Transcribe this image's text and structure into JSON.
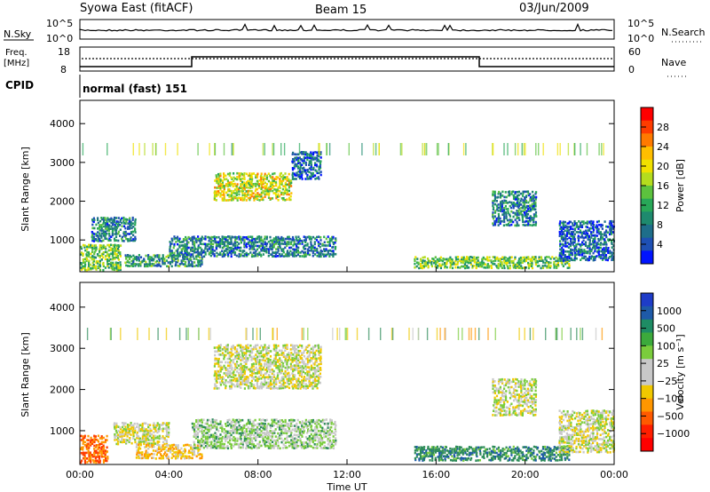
{
  "header": {
    "title": "Syowa East (fitACF)",
    "beam": "Beam 15",
    "date": "03/Jun/2009"
  },
  "nsky_panel": {
    "label": "N.Sky",
    "ticks": [
      "10^5",
      "10^0"
    ],
    "right_label": "N.Search",
    "right_ticks": [
      "10^5",
      "10^0"
    ]
  },
  "freq_panel": {
    "label_line1": "Freq.",
    "label_line2": "[MHz]",
    "ticks": [
      "18",
      "8"
    ],
    "right_label": "Nave",
    "right_ticks": [
      "60",
      "0"
    ]
  },
  "cpid": {
    "label": "CPID",
    "value": "normal (fast) 151"
  },
  "power_colorbar": {
    "label": "Power [dB]",
    "ticks": [
      "28",
      "24",
      "20",
      "16",
      "12",
      "8",
      "4"
    ],
    "colors": [
      "#ff0000",
      "#ff3c00",
      "#ff7a00",
      "#ffbe00",
      "#f0e000",
      "#b4dc1e",
      "#5cc23e",
      "#28a858",
      "#1e8a6e",
      "#1e6e8a",
      "#1e50b4",
      "#0014ff"
    ]
  },
  "velocity_colorbar": {
    "label": "Velocity [m s⁻¹]",
    "ticks": [
      "1000",
      "500",
      "100",
      "25",
      "−25",
      "−100",
      "−500",
      "−1000"
    ],
    "colors": [
      "#1e3cc8",
      "#1e5aa8",
      "#1e8c64",
      "#3caa3c",
      "#7acc3c",
      "#c8c8c8",
      "#c8c8c8",
      "#f0c800",
      "#ff9600",
      "#ff5a00",
      "#ff1e00",
      "#ff0000"
    ]
  },
  "chart_data": [
    {
      "type": "heatmap",
      "panel": "power",
      "ylabel": "Slant Range [km]",
      "yticks": [
        "1000",
        "2000",
        "3000",
        "4000"
      ],
      "ylim": [
        180,
        4600
      ],
      "x_ticks": [
        "00:00",
        "04:00",
        "08:00",
        "12:00",
        "16:00",
        "20:00",
        "00:00"
      ],
      "xlim_hours": [
        0,
        24
      ],
      "regions": [
        {
          "t0": 0.0,
          "t1": 1.8,
          "r0": 250,
          "r1": 900,
          "dB": 14
        },
        {
          "t0": 0.5,
          "t1": 2.5,
          "r0": 1000,
          "r1": 1600,
          "dB": 8
        },
        {
          "t0": 2.0,
          "t1": 5.5,
          "r0": 350,
          "r1": 650,
          "dB": 10
        },
        {
          "t0": 4.0,
          "t1": 11.5,
          "r0": 600,
          "r1": 1100,
          "dB": 8
        },
        {
          "t0": 6.0,
          "t1": 9.5,
          "r0": 2050,
          "r1": 2750,
          "dB": 18
        },
        {
          "t0": 9.5,
          "t1": 10.8,
          "r0": 2600,
          "r1": 3300,
          "dB": 6
        },
        {
          "t0": 15.0,
          "t1": 22.0,
          "r0": 300,
          "r1": 600,
          "dB": 14
        },
        {
          "t0": 18.5,
          "t1": 20.5,
          "r0": 1400,
          "r1": 2300,
          "dB": 8
        },
        {
          "t0": 21.5,
          "t1": 24.0,
          "r0": 500,
          "r1": 1500,
          "dB": 6
        }
      ]
    },
    {
      "type": "heatmap",
      "panel": "velocity",
      "ylabel": "Slant Range [km]",
      "yticks": [
        "1000",
        "2000",
        "3000",
        "4000"
      ],
      "ylim": [
        180,
        4600
      ],
      "x_ticks": [
        "00:00",
        "04:00",
        "08:00",
        "12:00",
        "16:00",
        "20:00",
        "00:00"
      ],
      "xlabel": "Time UT",
      "xlim_hours": [
        0,
        24
      ],
      "regions": [
        {
          "t0": 0.0,
          "t1": 1.2,
          "r0": 250,
          "r1": 900,
          "v": -300
        },
        {
          "t0": 1.5,
          "t1": 4.0,
          "r0": 700,
          "r1": 1200,
          "v": 0
        },
        {
          "t0": 2.5,
          "t1": 5.5,
          "r0": 350,
          "r1": 700,
          "v": -80
        },
        {
          "t0": 5.0,
          "t1": 11.5,
          "r0": 600,
          "r1": 1300,
          "v": 60
        },
        {
          "t0": 6.0,
          "t1": 10.8,
          "r0": 2050,
          "r1": 3100,
          "v": 0
        },
        {
          "t0": 15.0,
          "t1": 22.0,
          "r0": 300,
          "r1": 650,
          "v": 200
        },
        {
          "t0": 18.5,
          "t1": 20.5,
          "r0": 1400,
          "r1": 2300,
          "v": 0
        },
        {
          "t0": 21.5,
          "t1": 24.0,
          "r0": 500,
          "r1": 1500,
          "v": 0
        }
      ]
    }
  ]
}
